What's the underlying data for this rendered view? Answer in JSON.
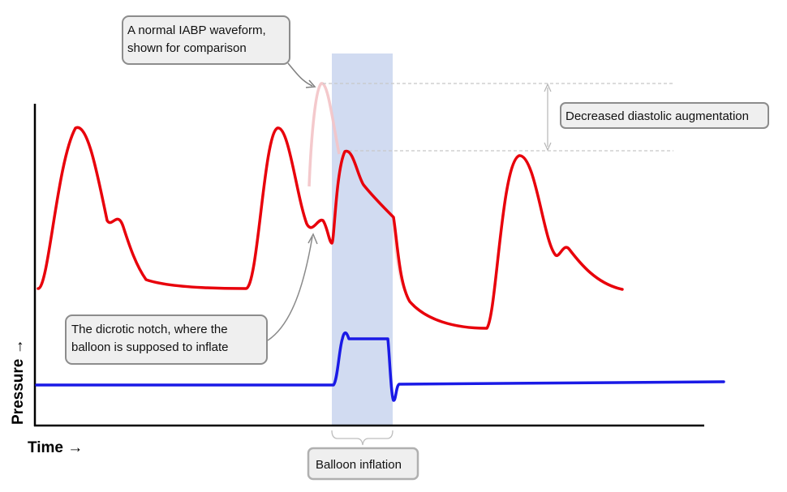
{
  "axes": {
    "x_label": "Time →",
    "y_label": "Pressure →"
  },
  "callouts": {
    "normal_waveform": [
      "A normal IABP waveform,",
      "shown for comparison"
    ],
    "diastolic_augmentation": "Decreased diastolic augmentation",
    "dicrotic_notch": [
      "The dicrotic notch, where the",
      "balloon is supposed to inflate"
    ],
    "balloon_inflation": "Balloon inflation"
  },
  "colors": {
    "arterial_pressure": "#e8000b",
    "balloon_pressure": "#1a1ae6",
    "inflation_band": "#c9d5ee",
    "callout_fill": "#efefef",
    "callout_border": "#8c8c8c"
  }
}
